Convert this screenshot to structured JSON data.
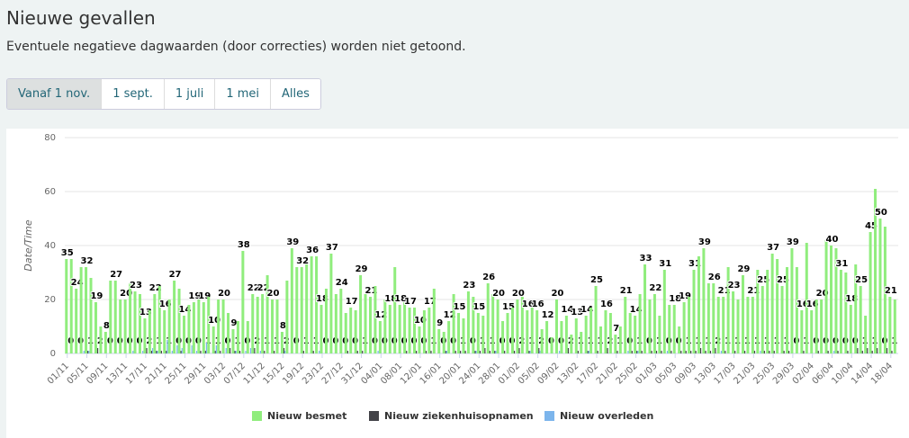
{
  "header": {
    "title": "Nieuwe gevallen",
    "subtitle": "Eventuele negatieve dagwaarden (door correcties) worden niet getoond."
  },
  "buttons": [
    "Vanaf 1 nov.",
    "1 sept.",
    "1 juli",
    "1 mei",
    "Alles"
  ],
  "chart_data": {
    "type": "bar",
    "ylabel": "Date/Time",
    "ylim": [
      0,
      80
    ],
    "yticks": [
      0,
      20,
      40,
      60,
      80
    ],
    "grid": true,
    "legend": "bottom",
    "categories": [
      "01/11",
      null,
      null,
      null,
      "05/11",
      null,
      null,
      null,
      "09/11",
      null,
      null,
      null,
      "13/11",
      null,
      null,
      null,
      "17/11",
      null,
      null,
      null,
      "21/11",
      null,
      null,
      null,
      "25/11",
      null,
      null,
      null,
      "29/11",
      null,
      null,
      null,
      "03/12",
      null,
      null,
      null,
      "07/12",
      null,
      null,
      null,
      "11/12",
      null,
      null,
      null,
      "15/12",
      null,
      null,
      null,
      "19/12",
      null,
      null,
      null,
      "23/12",
      null,
      null,
      null,
      "27/12",
      null,
      null,
      null,
      "31/12",
      null,
      null,
      null,
      "04/01",
      null,
      null,
      null,
      "08/01",
      null,
      null,
      null,
      "12/01",
      null,
      null,
      null,
      "16/01",
      null,
      null,
      null,
      "20/01",
      null,
      null,
      null,
      "24/01",
      null,
      null,
      null,
      "28/01",
      null,
      null,
      null,
      "01/02",
      null,
      null,
      null,
      "05/02",
      null,
      null,
      null,
      "09/02",
      null,
      null,
      null,
      "13/02",
      null,
      null,
      null,
      "17/02",
      null,
      null,
      null,
      "21/02",
      null,
      null,
      null,
      "25/02",
      null,
      null,
      null,
      "01/03",
      null,
      null,
      null,
      "05/03",
      null,
      null,
      null,
      "09/03",
      null,
      null,
      null,
      "13/03",
      null,
      null,
      null,
      "17/03",
      null,
      null,
      null,
      "21/03",
      null,
      null,
      null,
      "25/03",
      null,
      null,
      null,
      "29/03",
      null,
      null,
      null,
      "02/04",
      null,
      null,
      null,
      "06/04",
      null,
      null,
      null,
      "10/04",
      null,
      null,
      null,
      "14/04",
      null,
      null,
      null,
      "18/04",
      null
    ],
    "series": [
      {
        "name": "Nieuw besmet",
        "color": "#90ed7d",
        "values": [
          35,
          35,
          24,
          32,
          32,
          28,
          19,
          10,
          8,
          27,
          27,
          20,
          20,
          26,
          23,
          22,
          13,
          16,
          22,
          25,
          16,
          20,
          27,
          24,
          14,
          18,
          19,
          20,
          19,
          21,
          10,
          20,
          20,
          15,
          9,
          12,
          38,
          12,
          22,
          21,
          22,
          29,
          20,
          20,
          8,
          27,
          39,
          32,
          32,
          33,
          36,
          36,
          18,
          24,
          37,
          22,
          24,
          15,
          17,
          16,
          29,
          22,
          21,
          25,
          12,
          20,
          18,
          32,
          18,
          19,
          17,
          17,
          10,
          16,
          17,
          24,
          9,
          8,
          12,
          22,
          15,
          13,
          23,
          21,
          15,
          14,
          26,
          22,
          20,
          12,
          15,
          17,
          20,
          21,
          16,
          17,
          16,
          9,
          12,
          6,
          20,
          12,
          14,
          7,
          13,
          8,
          14,
          17,
          25,
          10,
          16,
          15,
          7,
          10,
          21,
          15,
          14,
          22,
          33,
          20,
          22,
          14,
          31,
          18,
          18,
          10,
          19,
          21,
          31,
          36,
          39,
          26,
          26,
          21,
          21,
          32,
          23,
          20,
          29,
          21,
          21,
          31,
          25,
          31,
          37,
          35,
          25,
          32,
          39,
          32,
          16,
          41,
          16,
          20,
          20,
          42,
          40,
          39,
          31,
          30,
          18,
          33,
          25,
          14,
          45,
          61,
          50,
          47,
          21,
          20
        ]
      },
      {
        "name": "Nieuw ziekenhuisopnamen",
        "color": "#434348",
        "values": [
          0,
          0,
          0,
          0,
          1,
          0,
          2,
          0,
          0,
          0,
          0,
          0,
          0,
          0,
          0,
          0,
          2,
          1,
          1,
          1,
          1,
          0,
          0,
          1,
          0,
          0,
          0,
          1,
          1,
          0,
          1,
          1,
          0,
          2,
          1,
          1,
          0,
          0,
          2,
          0,
          1,
          0,
          1,
          0,
          2,
          0,
          0,
          0,
          1,
          0,
          1,
          0,
          0,
          0,
          0,
          0,
          0,
          1,
          0,
          1,
          1,
          0,
          0,
          0,
          0,
          0,
          0,
          0,
          0,
          1,
          0,
          1,
          0,
          1,
          1,
          0,
          0,
          1,
          0,
          1,
          1,
          1,
          0,
          1,
          1,
          2,
          1,
          1,
          0,
          1,
          0,
          1,
          2,
          0,
          1,
          0,
          2,
          0,
          0,
          0,
          0,
          0,
          2,
          0,
          1,
          0,
          1,
          0,
          1,
          0,
          2,
          0,
          1,
          0,
          0,
          1,
          1,
          1,
          0,
          1,
          1,
          1,
          0,
          1,
          0,
          1,
          1,
          1,
          1,
          2,
          1,
          1,
          2,
          0,
          1,
          0,
          1,
          0,
          1,
          0,
          1,
          0,
          1,
          1,
          1,
          0,
          1,
          1,
          0,
          0,
          1,
          0,
          0,
          1,
          0,
          1,
          0,
          1,
          0,
          1,
          0,
          2,
          1,
          2,
          1,
          2,
          0,
          2,
          1,
          0
        ]
      },
      {
        "name": "Nieuw overleden",
        "color": "#7cb5ec",
        "values": [
          0,
          0,
          0,
          1,
          1,
          0,
          0,
          0,
          0,
          0,
          0,
          0,
          0,
          1,
          0,
          1,
          0,
          2,
          1,
          0,
          5,
          1,
          3,
          2,
          0,
          3,
          1,
          0,
          4,
          0,
          3,
          0,
          2,
          0,
          1,
          0,
          1,
          2,
          0,
          1,
          0,
          0,
          0,
          0,
          1,
          0,
          0,
          0,
          0,
          0,
          0,
          1,
          0,
          0,
          0,
          0,
          0,
          0,
          0,
          0,
          0,
          0,
          0,
          1,
          0,
          0,
          0,
          0,
          0,
          0,
          0,
          0,
          0,
          0,
          0,
          0,
          0,
          1,
          0,
          0,
          0,
          0,
          0,
          1,
          0,
          0,
          0,
          1,
          0,
          0,
          0,
          0,
          0,
          0,
          1,
          0,
          1,
          0,
          0,
          0,
          1,
          0,
          0,
          0,
          0,
          0,
          1,
          0,
          0,
          0,
          0,
          0,
          0,
          0,
          1,
          0,
          1,
          0,
          0,
          0,
          0,
          0,
          1,
          0,
          0,
          0,
          0,
          0,
          0,
          0,
          0,
          0,
          0,
          1,
          0,
          0,
          0,
          0,
          0,
          0,
          0,
          1,
          0,
          0,
          0,
          0,
          0,
          0,
          0,
          0,
          0,
          0,
          0,
          0,
          0,
          0,
          1,
          0,
          0,
          0,
          0,
          0,
          0,
          0,
          0,
          0,
          0,
          0,
          0,
          0
        ]
      }
    ]
  }
}
